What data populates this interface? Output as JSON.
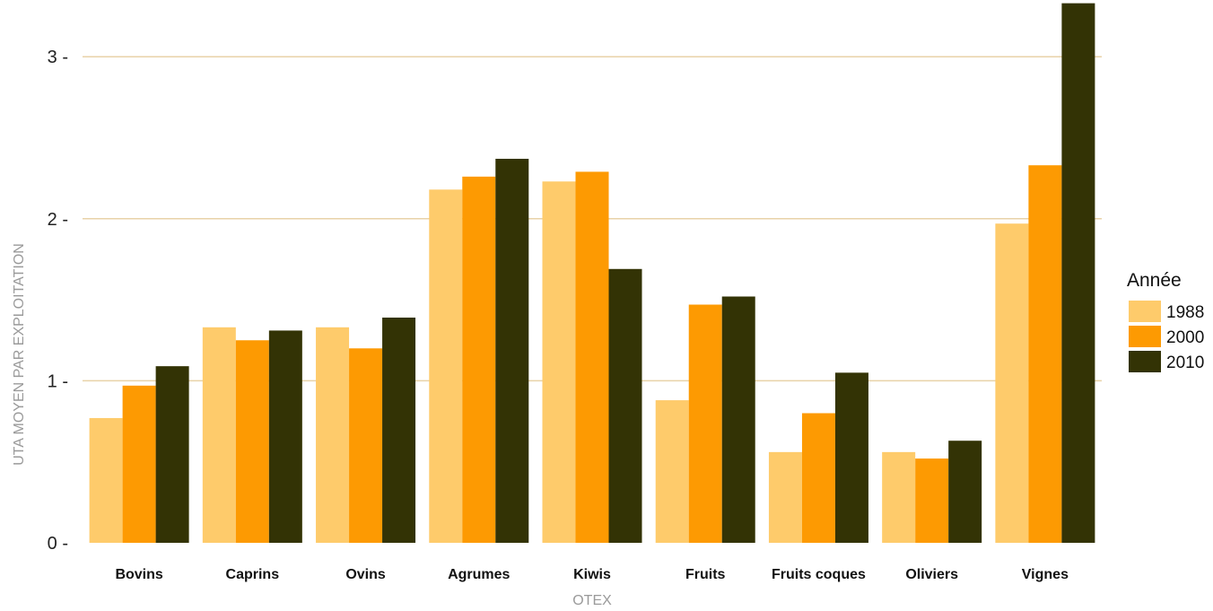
{
  "chart_data": {
    "type": "bar",
    "xlabel": "OTEX",
    "ylabel": "UTA MOYEN PAR EXPLOITATION",
    "ylim": [
      0,
      3.35
    ],
    "yticks": [
      "0",
      "1",
      "2",
      "3"
    ],
    "grid": "horizontal",
    "legend_position": "right",
    "legend_title": "Année",
    "categories": [
      "Bovins",
      "Caprins",
      "Ovins",
      "Agrumes",
      "Kiwis",
      "Fruits",
      "Fruits coques",
      "Oliviers",
      "Vignes"
    ],
    "series": [
      {
        "name": "1988",
        "color": "#fecb6b",
        "values": [
          0.77,
          1.33,
          1.33,
          2.18,
          2.23,
          0.88,
          0.56,
          0.56,
          1.97
        ]
      },
      {
        "name": "2000",
        "color": "#fd9a02",
        "values": [
          0.97,
          1.25,
          1.2,
          2.26,
          2.29,
          1.47,
          0.8,
          0.52,
          2.33
        ]
      },
      {
        "name": "2010",
        "color": "#333305",
        "values": [
          1.09,
          1.31,
          1.39,
          2.37,
          1.69,
          1.52,
          1.05,
          0.63,
          3.33
        ]
      }
    ]
  }
}
